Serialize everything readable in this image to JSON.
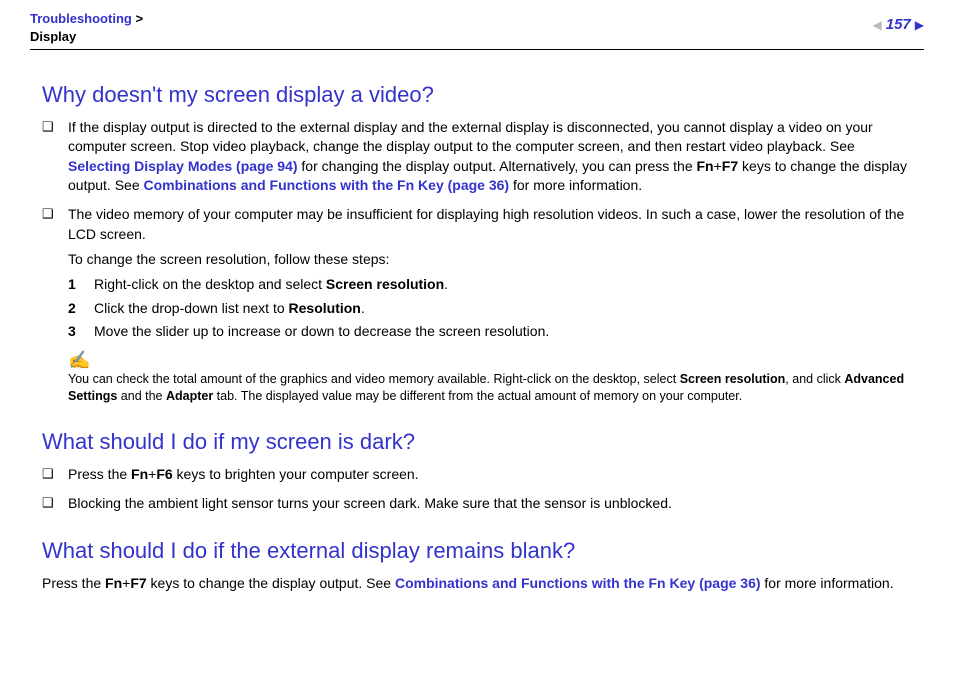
{
  "header": {
    "crumb1": "Troubleshooting",
    "sep": " > ",
    "crumb2": "Display",
    "pagenum": "157"
  },
  "s1": {
    "title": "Why doesn't my screen display a video?",
    "b1a": "If the display output is directed to the external display and the external display is disconnected, you cannot display a video on your computer screen. Stop video playback, change the display output to the computer screen, and then restart video playback. See ",
    "b1link1": "Selecting Display Modes (page 94)",
    "b1b": " for changing the display output. Alternatively, you can press the ",
    "b1fn": "Fn",
    "b1plus": "+",
    "b1f7": "F7",
    "b1c": " keys to change the display output. See ",
    "b1link2": "Combinations and Functions with the Fn Key (page 36)",
    "b1d": " for more information.",
    "b2a": "The video memory of your computer may be insufficient for displaying high resolution videos. In such a case, lower the resolution of the LCD screen.",
    "b2b": "To change the screen resolution, follow these steps:",
    "st1a": "Right-click on the desktop and select ",
    "st1b": "Screen resolution",
    "st1c": ".",
    "st2a": "Click the drop-down list next to ",
    "st2b": "Resolution",
    "st2c": ".",
    "st3": "Move the slider up to increase or down to decrease the screen resolution.",
    "noteIcon": "✍",
    "note_a": "You can check the total amount of the graphics and video memory available. Right-click on the desktop, select ",
    "note_b": "Screen resolution",
    "note_c": ", and click ",
    "note_d": "Advanced Settings",
    "note_e": " and the ",
    "note_f": "Adapter",
    "note_g": " tab. The displayed value may be different from the actual amount of memory on your computer."
  },
  "s2": {
    "title": "What should I do if my screen is dark?",
    "b1a": "Press the ",
    "b1fn": "Fn",
    "b1plus": "+",
    "b1f6": "F6",
    "b1b": " keys to brighten your computer screen.",
    "b2": "Blocking the ambient light sensor turns your screen dark. Make sure that the sensor is unblocked."
  },
  "s3": {
    "title": "What should I do if the external display remains blank?",
    "pa": "Press the ",
    "pfn": "Fn",
    "pplus": "+",
    "pf7": "F7",
    "pb": " keys to change the display output. See ",
    "plink": "Combinations and Functions with the Fn Key (page 36)",
    "pc": " for more information."
  },
  "nums": {
    "n1": "1",
    "n2": "2",
    "n3": "3"
  },
  "marks": {
    "bullet": "❑",
    "triL": "◀",
    "triR": "▶"
  }
}
